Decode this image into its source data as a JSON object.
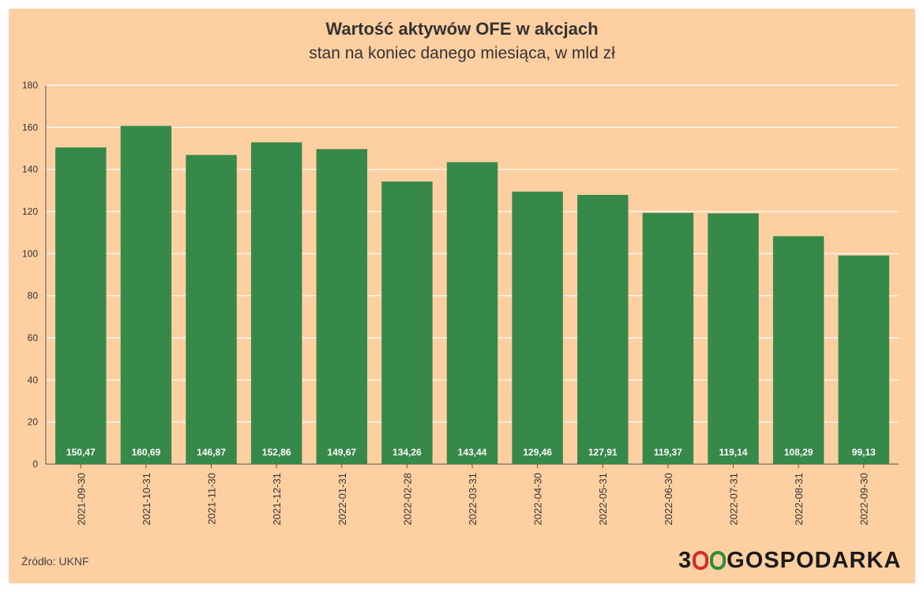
{
  "header": {
    "title": "Wartość aktywów OFE w akcjach",
    "subtitle": "stan na koniec danego miesiąca, w mld zł"
  },
  "footer": {
    "source": "Źródło: UKNF",
    "logo_prefix": "3",
    "logo_text": "GOSPODARKA"
  },
  "colors": {
    "background": "#fdcfa1",
    "bar": "#37894a",
    "gridline": "#ffffff",
    "logo_ring_red": "#d42b2b",
    "logo_ring_green": "#2e8b3d"
  },
  "chart_data": {
    "type": "bar",
    "title": "Wartość aktywów OFE w akcjach",
    "subtitle": "stan na koniec danego miesiąca, w mld zł",
    "categories": [
      "2021-09-30",
      "2021-10-31",
      "2021-11-30",
      "2021-12-31",
      "2022-01-31",
      "2022-02-28",
      "2022-03-31",
      "2022-04-30",
      "2022-05-31",
      "2022-06-30",
      "2022-07-31",
      "2022-08-31",
      "2022-09-30"
    ],
    "values": [
      150.47,
      160.69,
      146.87,
      152.86,
      149.67,
      134.26,
      143.44,
      129.46,
      127.91,
      119.37,
      119.14,
      108.29,
      99.13
    ],
    "value_labels": [
      "150,47",
      "160,69",
      "146,87",
      "152,86",
      "149,67",
      "134,26",
      "143,44",
      "129,46",
      "127,91",
      "119,37",
      "119,14",
      "108,29",
      "99,13"
    ],
    "ylim": [
      0,
      180
    ],
    "yticks": [
      0,
      20,
      40,
      60,
      80,
      100,
      120,
      140,
      160,
      180
    ],
    "grid": true,
    "legend": "none"
  }
}
